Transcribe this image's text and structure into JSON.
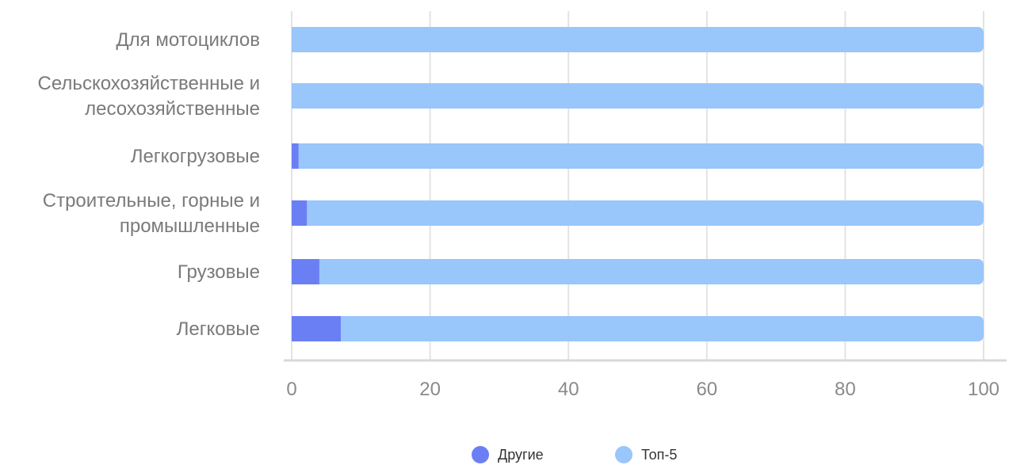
{
  "chart_data": {
    "type": "bar",
    "orientation": "horizontal",
    "stacked": true,
    "categories": [
      "Для мотоциклов",
      "Сельскохозяйственные и лесохозяйственные",
      "Легкогрузовые",
      "Строительные, горные и промышленные",
      "Грузовые",
      "Легковые"
    ],
    "category_lines": [
      [
        "Для мотоциклов"
      ],
      [
        "Сельскохозяйственные и",
        "лесохозяйственные"
      ],
      [
        "Легкогрузовые"
      ],
      [
        "Строительные, горные и",
        "промышленные"
      ],
      [
        "Грузовые"
      ],
      [
        "Легковые"
      ]
    ],
    "series": [
      {
        "name": "Другие",
        "color": "#6b7ff5",
        "values": [
          0,
          0,
          1,
          2.2,
          4,
          7.1
        ]
      },
      {
        "name": "Топ-5",
        "color": "#99c6fb",
        "values": [
          100,
          100,
          99,
          97.8,
          96,
          92.9
        ]
      }
    ],
    "xlim": [
      0,
      100
    ],
    "xticks": [
      "0",
      "20",
      "40",
      "60",
      "80",
      "100"
    ],
    "grid": true,
    "legend_position": "bottom"
  }
}
